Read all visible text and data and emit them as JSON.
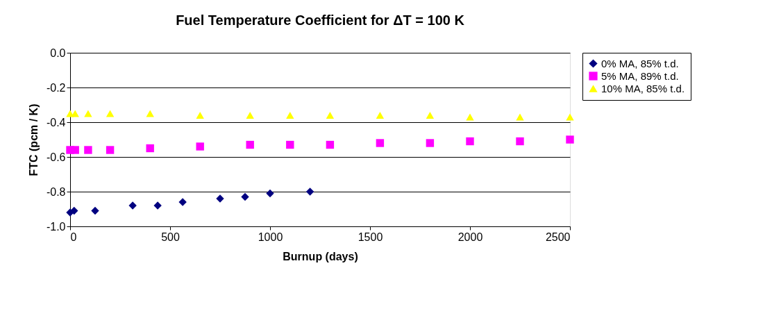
{
  "chart_data": {
    "type": "scatter",
    "title": "Fuel Temperature Coefficient for ΔT  = 100 K",
    "xlabel": "Burnup (days)",
    "ylabel": "FTC (pcm / K)",
    "xlim": [
      0,
      2500
    ],
    "xticks": [
      0,
      500,
      1000,
      1500,
      2000,
      2500
    ],
    "ylim": [
      -1.0,
      0.0
    ],
    "yticks": [
      {
        "value": -1.0,
        "label": "-1.0"
      },
      {
        "value": -0.8,
        "label": "-0.8"
      },
      {
        "value": -0.6,
        "label": "-0.6"
      },
      {
        "value": -0.4,
        "label": "-0.4"
      },
      {
        "value": -0.2,
        "label": "-0.2"
      },
      {
        "value": 0.0,
        "label": "0.0"
      }
    ],
    "grid": "y",
    "legend": "right",
    "series": [
      {
        "name": "0% MA, 85% t.d.",
        "color": "#000080",
        "marker": "diamond",
        "x": [
          0,
          20,
          125,
          313,
          438,
          563,
          750,
          875,
          1000,
          1200
        ],
        "values": [
          -0.92,
          -0.91,
          -0.91,
          -0.88,
          -0.88,
          -0.86,
          -0.84,
          -0.83,
          -0.81,
          -0.8
        ]
      },
      {
        "name": "5% MA, 89% t.d.",
        "color": "#ff00ff",
        "marker": "square",
        "x": [
          0,
          25,
          90,
          200,
          400,
          650,
          900,
          1100,
          1300,
          1550,
          1800,
          2000,
          2250,
          2500
        ],
        "values": [
          -0.56,
          -0.56,
          -0.56,
          -0.56,
          -0.55,
          -0.54,
          -0.53,
          -0.53,
          -0.53,
          -0.52,
          -0.52,
          -0.51,
          -0.51,
          -0.5
        ]
      },
      {
        "name": "10% MA, 85% t.d.",
        "color": "#ffff00",
        "marker": "triangle",
        "x": [
          0,
          25,
          90,
          200,
          400,
          650,
          900,
          1100,
          1300,
          1550,
          1800,
          2000,
          2250,
          2500
        ],
        "values": [
          -0.35,
          -0.35,
          -0.35,
          -0.35,
          -0.35,
          -0.36,
          -0.36,
          -0.36,
          -0.36,
          -0.36,
          -0.36,
          -0.37,
          -0.37,
          -0.37
        ]
      }
    ]
  }
}
